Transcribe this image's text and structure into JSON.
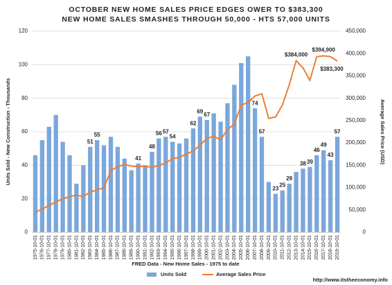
{
  "chart_data": {
    "type": "bar_line",
    "title": "OCTOBER  NEW HOME SALES PRICE EDGES OWER TO $383,300",
    "subtitle": "NEW HOME SALES SMASHES THROUGH 50,000 - HTS 57,000 UNITS",
    "y_label": "Units Sold - New Construction - Thousands",
    "y2_label": "Average Sales Price (USD)",
    "x_label": "FRED Data - New Home Sales - 1975 to date",
    "source": "http://www.itstheeconomy.info",
    "categories": [
      "1975-10-01",
      "1976-10-01",
      "1977-10-01",
      "1978-10-01",
      "1979-10-01",
      "1980-10-01",
      "1981-10-01",
      "1982-10-01",
      "1983-10-01",
      "1984-10-01",
      "1985-10-01",
      "1986-10-01",
      "1987-10-01",
      "1988-10-01",
      "1989-10-01",
      "1990-10-01",
      "1991-10-01",
      "1992-10-01",
      "1993-10-01",
      "1994-10-01",
      "1995-10-01",
      "1996-10-01",
      "1997-10-01",
      "1998-10-01",
      "1999-10-01",
      "2000-10-01",
      "2001-10-01",
      "2002-10-01",
      "2003-10-01",
      "2004-10-01",
      "2005-10-01",
      "2006-10-01",
      "2007-10-01",
      "2008-10-01",
      "2009-10-01",
      "2010-10-01",
      "2011-10-01",
      "2012-10-01",
      "2013-10-01",
      "2014-10-01",
      "2015-10-01",
      "2016-10-01",
      "2017-10-01",
      "2018-10-01",
      "2019-10-01"
    ],
    "series": [
      {
        "name": "Units Sold",
        "color": "#7ba7db",
        "type": "bar",
        "values": [
          46,
          55,
          63,
          70,
          54,
          46,
          29,
          40,
          51,
          55,
          52,
          57,
          51,
          44,
          37,
          41,
          40,
          48,
          56,
          57,
          54,
          53,
          56,
          62,
          69,
          67,
          71,
          66,
          77,
          88,
          101,
          105,
          74,
          57,
          30,
          23,
          25,
          29,
          36,
          38,
          39,
          46,
          49,
          43,
          57
        ],
        "value_labels": [
          null,
          null,
          null,
          null,
          null,
          null,
          null,
          null,
          "51",
          "55",
          null,
          null,
          null,
          null,
          null,
          "41",
          null,
          "48",
          "56",
          "57",
          "54",
          null,
          null,
          "62",
          "69",
          "67",
          null,
          null,
          null,
          null,
          null,
          null,
          "74",
          "57",
          null,
          "23",
          "25",
          "29",
          null,
          "38",
          "39",
          "46",
          "49",
          "43",
          "57"
        ]
      },
      {
        "name": "Average Sales Price",
        "color": "#ed7d31",
        "type": "line",
        "axis": "y2",
        "values": [
          45000,
          52000,
          60000,
          68000,
          75000,
          80000,
          83000,
          80000,
          90000,
          95000,
          100000,
          138000,
          147000,
          152000,
          148000,
          147000,
          148000,
          145000,
          150000,
          155000,
          165000,
          168000,
          175000,
          182000,
          195000,
          210000,
          215000,
          207000,
          230000,
          242000,
          285000,
          290000,
          305000,
          310000,
          255000,
          258000,
          285000,
          330000,
          384000,
          368000,
          340000,
          393000,
          394900,
          393000,
          383300
        ],
        "value_labels": [
          null,
          null,
          null,
          null,
          null,
          null,
          null,
          null,
          null,
          null,
          null,
          null,
          null,
          null,
          null,
          null,
          null,
          null,
          null,
          null,
          null,
          null,
          null,
          null,
          null,
          null,
          null,
          null,
          null,
          null,
          null,
          null,
          null,
          null,
          null,
          null,
          null,
          null,
          "$384,000",
          null,
          null,
          null,
          "$394,900",
          null,
          "$383,300"
        ]
      }
    ],
    "ylim": [
      0,
      120
    ],
    "yticks": [
      0,
      20,
      40,
      60,
      80,
      100,
      120
    ],
    "y2lim": [
      0,
      450000
    ],
    "y2ticks": [
      0,
      {
        "value": 50000,
        "label": "50,000"
      },
      {
        "value": 100000,
        "label": "100,000"
      },
      {
        "value": 150000,
        "label": "150,000"
      },
      {
        "value": 200000,
        "label": "200,000"
      },
      {
        "value": 250000,
        "label": "250,000"
      },
      {
        "value": 300000,
        "label": "300,000"
      },
      {
        "value": 350000,
        "label": "350,000"
      },
      {
        "value": 400000,
        "label": "400,000"
      },
      {
        "value": 450000,
        "label": "450,000"
      }
    ],
    "grid": true,
    "legend": "bottom"
  }
}
